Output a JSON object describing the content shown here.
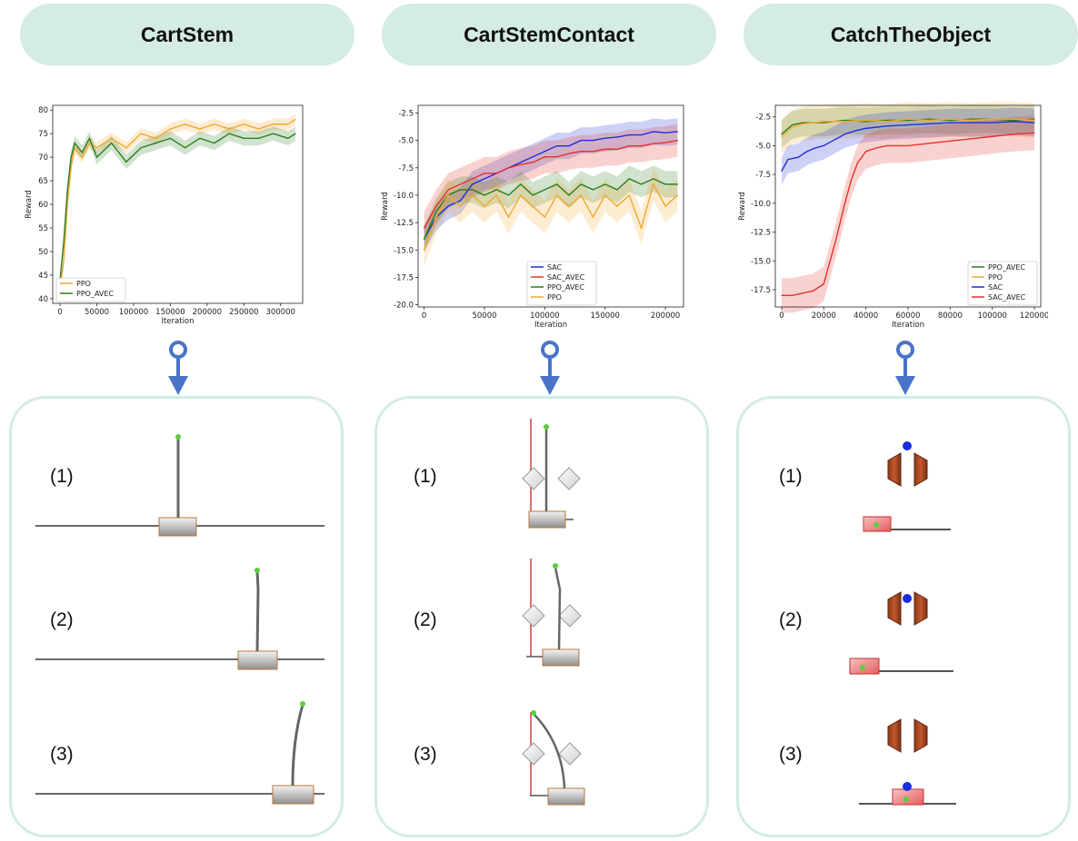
{
  "columns": [
    {
      "title": "CartStem",
      "steps": [
        "(1)",
        "(2)",
        "(3)"
      ]
    },
    {
      "title": "CartStemContact",
      "steps": [
        "(1)",
        "(2)",
        "(3)"
      ]
    },
    {
      "title": "CatchTheObject",
      "steps": [
        "(1)",
        "(2)",
        "(3)"
      ]
    }
  ],
  "colors": {
    "header_bg": "#d4ebe6",
    "arrow": "#4a74c9",
    "panel_border": "#d4ebe6"
  },
  "chart_data": [
    {
      "type": "line",
      "xlabel": "Iteration",
      "ylabel": "Reward",
      "xlim": [
        -10000,
        330000
      ],
      "ylim": [
        39,
        81
      ],
      "xticks": [
        0,
        50000,
        100000,
        150000,
        200000,
        250000,
        300000
      ],
      "yticks": [
        40,
        45,
        50,
        55,
        60,
        65,
        70,
        75,
        80
      ],
      "legend_position": "lower-left",
      "series": [
        {
          "name": "PPO",
          "color": "#f0a830",
          "shaded": true,
          "points": [
            [
              0,
              42
            ],
            [
              5000,
              48
            ],
            [
              10000,
              60
            ],
            [
              15000,
              68
            ],
            [
              20000,
              72
            ],
            [
              30000,
              70
            ],
            [
              40000,
              73
            ],
            [
              50000,
              72
            ],
            [
              70000,
              74
            ],
            [
              90000,
              72
            ],
            [
              110000,
              75
            ],
            [
              130000,
              74
            ],
            [
              150000,
              76
            ],
            [
              170000,
              77
            ],
            [
              190000,
              76
            ],
            [
              210000,
              77
            ],
            [
              230000,
              76
            ],
            [
              250000,
              77
            ],
            [
              270000,
              76
            ],
            [
              290000,
              77
            ],
            [
              310000,
              77
            ],
            [
              320000,
              78
            ]
          ]
        },
        {
          "name": "PPO_AVEC",
          "color": "#2e7d1e",
          "shaded": true,
          "points": [
            [
              0,
              44
            ],
            [
              5000,
              52
            ],
            [
              10000,
              63
            ],
            [
              15000,
              70
            ],
            [
              20000,
              73
            ],
            [
              30000,
              71
            ],
            [
              40000,
              74
            ],
            [
              50000,
              70
            ],
            [
              70000,
              73
            ],
            [
              90000,
              69
            ],
            [
              110000,
              72
            ],
            [
              130000,
              73
            ],
            [
              150000,
              74
            ],
            [
              170000,
              72
            ],
            [
              190000,
              74
            ],
            [
              210000,
              73
            ],
            [
              230000,
              75
            ],
            [
              250000,
              74
            ],
            [
              270000,
              74
            ],
            [
              290000,
              75
            ],
            [
              310000,
              74
            ],
            [
              320000,
              75
            ]
          ]
        }
      ]
    },
    {
      "type": "line",
      "xlabel": "Iteration",
      "ylabel": "Reward",
      "xlim": [
        -5000,
        215000
      ],
      "ylim": [
        -20.2,
        -1.8
      ],
      "xticks": [
        0,
        50000,
        100000,
        150000,
        200000
      ],
      "yticks": [
        -20.0,
        -17.5,
        -15.0,
        -12.5,
        -10.0,
        -7.5,
        -5.0,
        -2.5
      ],
      "legend_position": "lower-center",
      "series": [
        {
          "name": "SAC",
          "color": "#1f2fd6",
          "shaded": true,
          "points": [
            [
              0,
              -14
            ],
            [
              10000,
              -12
            ],
            [
              20000,
              -11
            ],
            [
              30000,
              -10.5
            ],
            [
              40000,
              -9
            ],
            [
              50000,
              -8.5
            ],
            [
              60000,
              -8
            ],
            [
              70000,
              -7.5
            ],
            [
              80000,
              -7
            ],
            [
              90000,
              -6.5
            ],
            [
              100000,
              -6
            ],
            [
              110000,
              -5.5
            ],
            [
              120000,
              -5.5
            ],
            [
              130000,
              -5
            ],
            [
              140000,
              -5
            ],
            [
              150000,
              -4.8
            ],
            [
              160000,
              -4.7
            ],
            [
              170000,
              -4.5
            ],
            [
              180000,
              -4.5
            ],
            [
              190000,
              -4.2
            ],
            [
              200000,
              -4.3
            ],
            [
              210000,
              -4.2
            ]
          ]
        },
        {
          "name": "SAC_AVEC",
          "color": "#e5312b",
          "shaded": true,
          "points": [
            [
              0,
              -13
            ],
            [
              10000,
              -11
            ],
            [
              20000,
              -9.5
            ],
            [
              30000,
              -9
            ],
            [
              40000,
              -8.5
            ],
            [
              50000,
              -8
            ],
            [
              60000,
              -8
            ],
            [
              70000,
              -7.5
            ],
            [
              80000,
              -7.2
            ],
            [
              90000,
              -7
            ],
            [
              100000,
              -6.5
            ],
            [
              110000,
              -6.5
            ],
            [
              120000,
              -6.2
            ],
            [
              130000,
              -6
            ],
            [
              140000,
              -6
            ],
            [
              150000,
              -5.8
            ],
            [
              160000,
              -5.8
            ],
            [
              170000,
              -5.5
            ],
            [
              180000,
              -5.5
            ],
            [
              190000,
              -5.3
            ],
            [
              200000,
              -5.2
            ],
            [
              210000,
              -5
            ]
          ]
        },
        {
          "name": "PPO_AVEC",
          "color": "#2e7d1e",
          "shaded": true,
          "points": [
            [
              0,
              -14
            ],
            [
              10000,
              -11.5
            ],
            [
              20000,
              -10
            ],
            [
              30000,
              -9.5
            ],
            [
              40000,
              -9.5
            ],
            [
              50000,
              -10
            ],
            [
              60000,
              -9.5
            ],
            [
              70000,
              -10
            ],
            [
              80000,
              -9
            ],
            [
              90000,
              -10
            ],
            [
              100000,
              -9.5
            ],
            [
              110000,
              -9
            ],
            [
              120000,
              -10
            ],
            [
              130000,
              -9
            ],
            [
              140000,
              -9.5
            ],
            [
              150000,
              -9
            ],
            [
              160000,
              -9.5
            ],
            [
              170000,
              -8.5
            ],
            [
              180000,
              -9
            ],
            [
              190000,
              -8.5
            ],
            [
              200000,
              -9
            ],
            [
              210000,
              -9
            ]
          ]
        },
        {
          "name": "PPO",
          "color": "#f0a830",
          "shaded": true,
          "points": [
            [
              0,
              -15
            ],
            [
              10000,
              -12
            ],
            [
              20000,
              -10
            ],
            [
              30000,
              -11
            ],
            [
              40000,
              -10
            ],
            [
              50000,
              -11
            ],
            [
              60000,
              -10
            ],
            [
              70000,
              -12
            ],
            [
              80000,
              -10
            ],
            [
              90000,
              -11
            ],
            [
              100000,
              -12
            ],
            [
              110000,
              -10
            ],
            [
              120000,
              -11
            ],
            [
              130000,
              -10
            ],
            [
              140000,
              -12
            ],
            [
              150000,
              -10
            ],
            [
              160000,
              -11
            ],
            [
              170000,
              -10
            ],
            [
              180000,
              -13
            ],
            [
              190000,
              -9
            ],
            [
              200000,
              -11
            ],
            [
              210000,
              -10
            ]
          ]
        }
      ]
    },
    {
      "type": "line",
      "xlabel": "Iteration",
      "ylabel": "Reward",
      "xlim": [
        -3000,
        123000
      ],
      "ylim": [
        -19,
        -1.5
      ],
      "xticks": [
        0,
        20000,
        40000,
        60000,
        80000,
        100000,
        120000
      ],
      "yticks": [
        -17.5,
        -15.0,
        -12.5,
        -10.0,
        -7.5,
        -5.0,
        -2.5
      ],
      "legend_position": "lower-right",
      "series": [
        {
          "name": "PPO_AVEC",
          "color": "#2e7d1e",
          "shaded": true,
          "points": [
            [
              0,
              -4
            ],
            [
              5000,
              -3.2
            ],
            [
              10000,
              -3
            ],
            [
              20000,
              -3
            ],
            [
              30000,
              -2.8
            ],
            [
              40000,
              -2.9
            ],
            [
              50000,
              -2.8
            ],
            [
              60000,
              -2.8
            ],
            [
              70000,
              -2.7
            ],
            [
              80000,
              -2.8
            ],
            [
              90000,
              -2.7
            ],
            [
              100000,
              -2.7
            ],
            [
              110000,
              -2.8
            ],
            [
              120000,
              -2.7
            ]
          ]
        },
        {
          "name": "PPO",
          "color": "#f0a830",
          "shaded": true,
          "points": [
            [
              0,
              -4.2
            ],
            [
              5000,
              -3.4
            ],
            [
              10000,
              -3.1
            ],
            [
              20000,
              -2.9
            ],
            [
              30000,
              -2.9
            ],
            [
              40000,
              -2.8
            ],
            [
              50000,
              -2.9
            ],
            [
              60000,
              -2.7
            ],
            [
              70000,
              -2.8
            ],
            [
              80000,
              -2.7
            ],
            [
              90000,
              -2.8
            ],
            [
              100000,
              -2.7
            ],
            [
              110000,
              -2.7
            ],
            [
              120000,
              -2.8
            ]
          ]
        },
        {
          "name": "SAC",
          "color": "#1f2fd6",
          "shaded": true,
          "points": [
            [
              0,
              -7.2
            ],
            [
              3000,
              -6.2
            ],
            [
              8000,
              -6
            ],
            [
              12000,
              -5.5
            ],
            [
              16000,
              -5.2
            ],
            [
              20000,
              -5
            ],
            [
              25000,
              -4.5
            ],
            [
              30000,
              -4
            ],
            [
              35000,
              -3.7
            ],
            [
              40000,
              -3.5
            ],
            [
              50000,
              -3.3
            ],
            [
              60000,
              -3.2
            ],
            [
              70000,
              -3.1
            ],
            [
              80000,
              -3
            ],
            [
              90000,
              -3
            ],
            [
              100000,
              -3
            ],
            [
              110000,
              -2.9
            ],
            [
              120000,
              -3
            ]
          ]
        },
        {
          "name": "SAC_AVEC",
          "color": "#e5312b",
          "shaded": true,
          "points": [
            [
              0,
              -18
            ],
            [
              5000,
              -18
            ],
            [
              10000,
              -17.8
            ],
            [
              15000,
              -17.6
            ],
            [
              20000,
              -17
            ],
            [
              23000,
              -15
            ],
            [
              26000,
              -13
            ],
            [
              30000,
              -10
            ],
            [
              33000,
              -8
            ],
            [
              36000,
              -6.5
            ],
            [
              40000,
              -5.5
            ],
            [
              45000,
              -5.2
            ],
            [
              50000,
              -5
            ],
            [
              60000,
              -5
            ],
            [
              70000,
              -4.8
            ],
            [
              80000,
              -4.6
            ],
            [
              90000,
              -4.4
            ],
            [
              100000,
              -4.2
            ],
            [
              110000,
              -4
            ],
            [
              120000,
              -3.9
            ]
          ]
        }
      ]
    }
  ]
}
